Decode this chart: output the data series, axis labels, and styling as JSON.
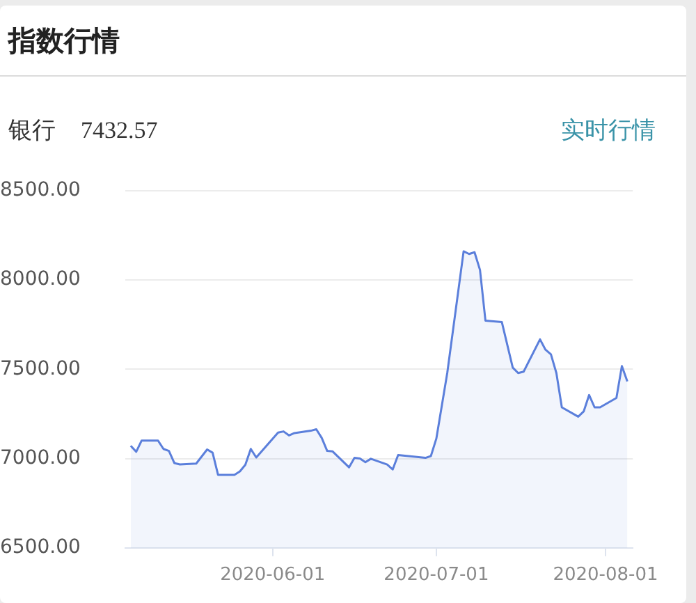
{
  "chart_data": {
    "type": "area",
    "title": "指数行情",
    "subtitle": "银行",
    "annotations": [
      "7432.57",
      "实时行情"
    ],
    "x": [
      "2020-05-06",
      "2020-05-07",
      "2020-05-08",
      "2020-05-11",
      "2020-05-12",
      "2020-05-13",
      "2020-05-14",
      "2020-05-15",
      "2020-05-18",
      "2020-05-20",
      "2020-05-21",
      "2020-05-22",
      "2020-05-25",
      "2020-05-26",
      "2020-05-27",
      "2020-05-28",
      "2020-05-29",
      "2020-06-02",
      "2020-06-03",
      "2020-06-04",
      "2020-06-05",
      "2020-06-08",
      "2020-06-09",
      "2020-06-10",
      "2020-06-11",
      "2020-06-12",
      "2020-06-15",
      "2020-06-16",
      "2020-06-17",
      "2020-06-18",
      "2020-06-19",
      "2020-06-22",
      "2020-06-23",
      "2020-06-24",
      "2020-06-29",
      "2020-06-30",
      "2020-07-01",
      "2020-07-03",
      "2020-07-06",
      "2020-07-07",
      "2020-07-08",
      "2020-07-09",
      "2020-07-10",
      "2020-07-13",
      "2020-07-15",
      "2020-07-16",
      "2020-07-17",
      "2020-07-20",
      "2020-07-21",
      "2020-07-22",
      "2020-07-23",
      "2020-07-24",
      "2020-07-27",
      "2020-07-28",
      "2020-07-29",
      "2020-07-30",
      "2020-07-31",
      "2020-08-03",
      "2020-08-04",
      "2020-08-05"
    ],
    "series": [
      {
        "color": "#5b7fdb",
        "values": [
          7072,
          7038,
          7101,
          7101,
          7054,
          7043,
          6975,
          6967,
          6972,
          7051,
          7033,
          6909,
          6909,
          6928,
          6965,
          7054,
          7006,
          7146,
          7152,
          7130,
          7143,
          7156,
          7164,
          7116,
          7043,
          7040,
          6951,
          7004,
          7000,
          6980,
          6999,
          6967,
          6939,
          7020,
          7004,
          7014,
          7112,
          7479,
          8161,
          8146,
          8156,
          8057,
          7773,
          7765,
          7510,
          7479,
          7487,
          7668,
          7610,
          7584,
          7479,
          7287,
          7235,
          7264,
          7356,
          7287,
          7287,
          7340,
          7518,
          7432.57
        ]
      }
    ],
    "xlim": [
      "2020-05-05",
      "2020-08-06"
    ],
    "xticks": [
      "2020-06-01",
      "2020-07-01",
      "2020-08-01"
    ],
    "ylim": [
      6500,
      8500
    ],
    "yticks": [
      {
        "value": 6500,
        "label": "6500.00"
      },
      {
        "value": 7000,
        "label": "7000.00"
      },
      {
        "value": 7500,
        "label": "7500.00"
      },
      {
        "value": 8000,
        "label": "8000.00"
      },
      {
        "value": 8500,
        "label": "8500.00"
      }
    ],
    "grid": "y",
    "legend": false,
    "marker": "none",
    "line_style": "solid"
  }
}
